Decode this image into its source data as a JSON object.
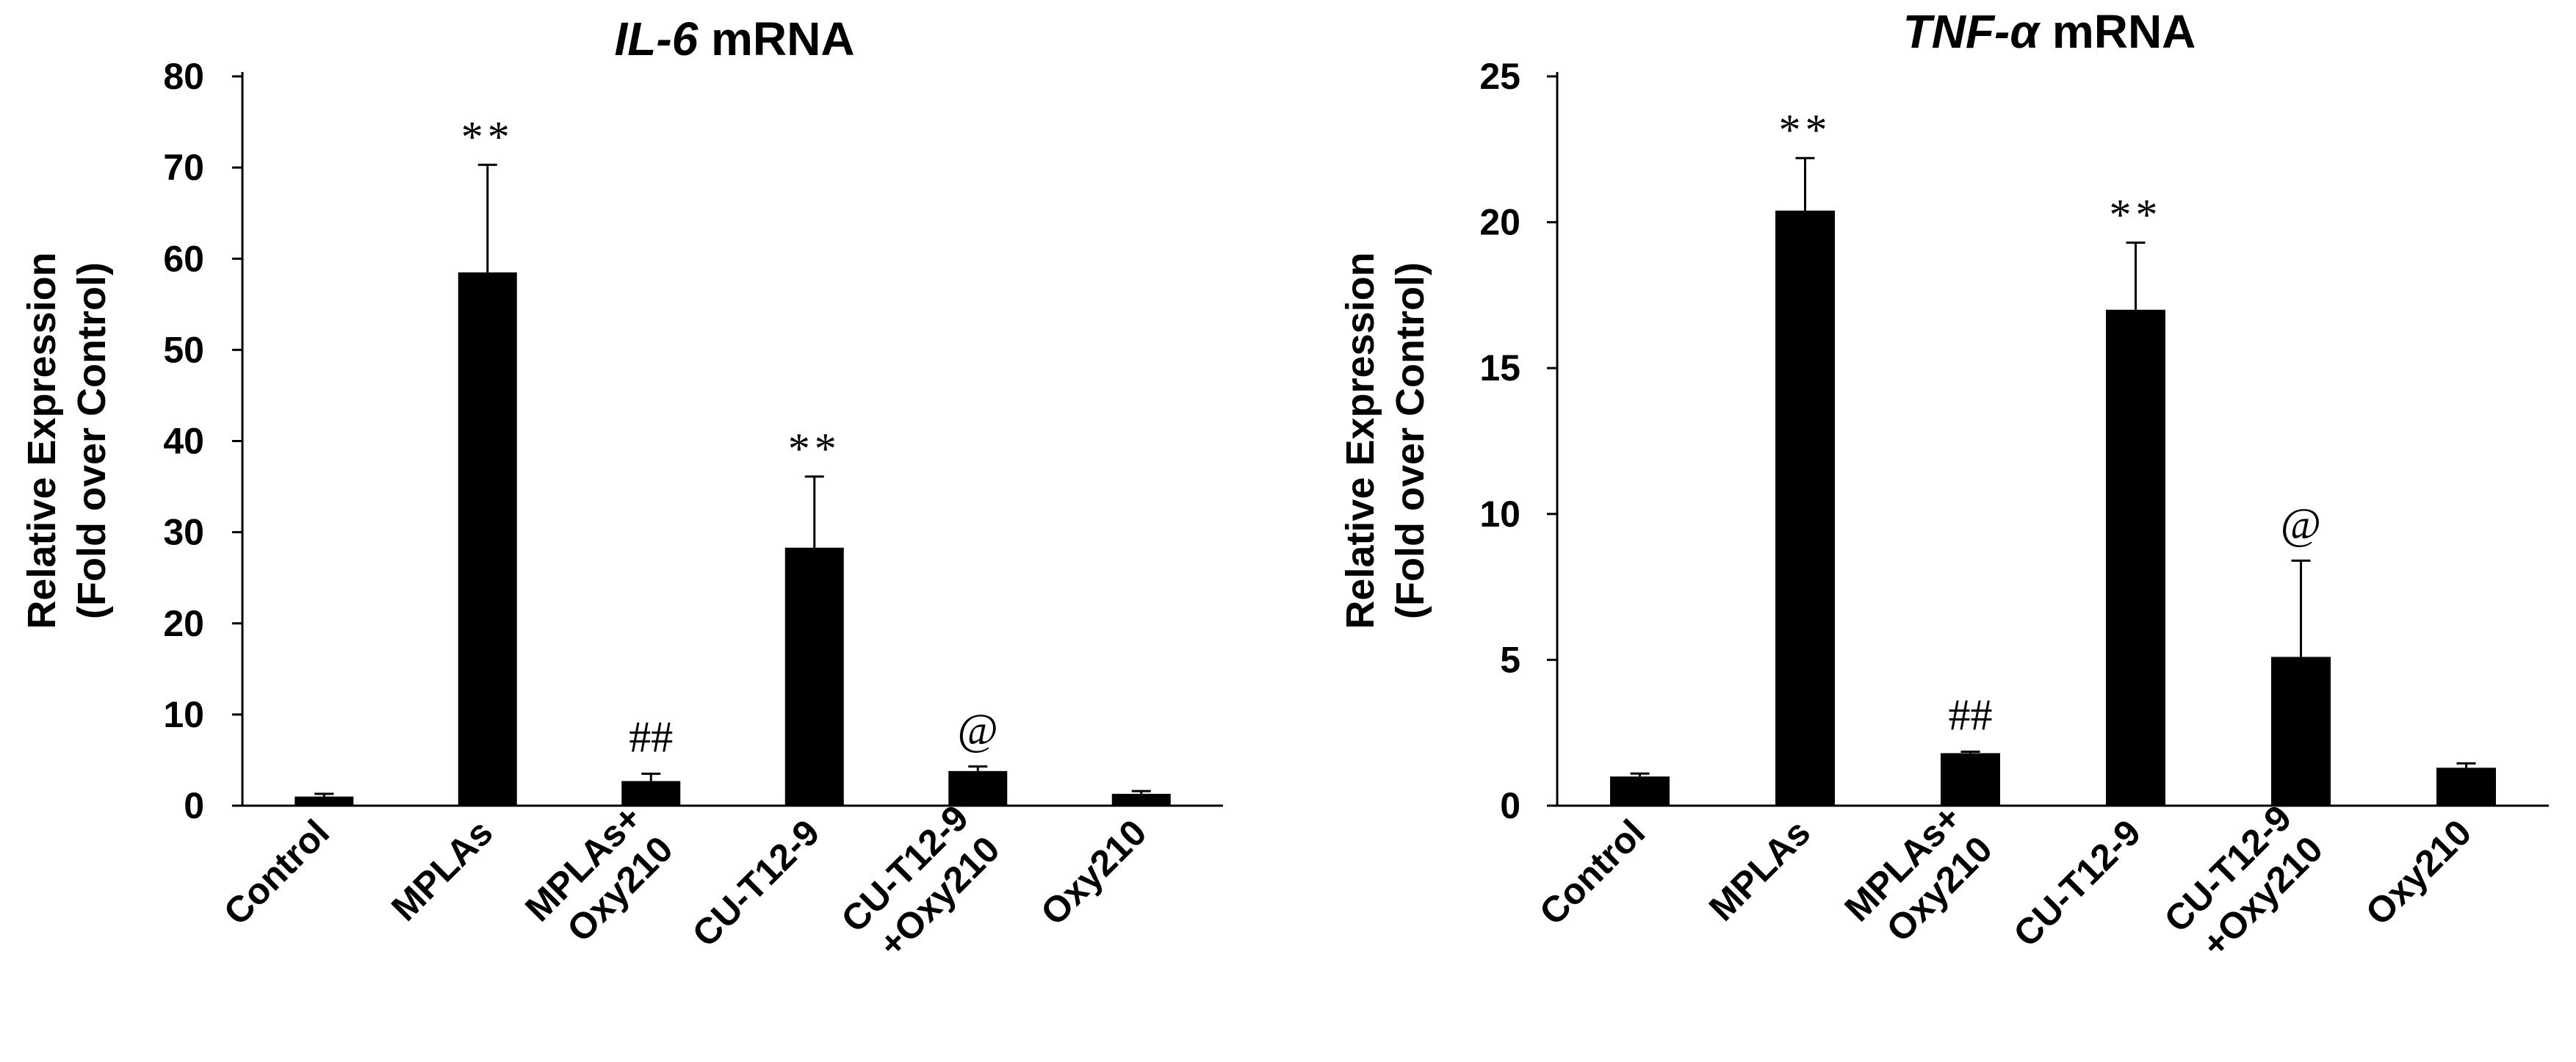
{
  "chart_data": [
    {
      "type": "bar",
      "title_italic": "IL-6",
      "title_rest": " mRNA",
      "ylabel_lines": [
        "Relative Expression",
        "(Fold over Control)"
      ],
      "xlabel": "",
      "ylim": [
        0,
        80
      ],
      "yticks": [
        0,
        10,
        20,
        30,
        40,
        50,
        60,
        70,
        80
      ],
      "categories": [
        [
          "Control"
        ],
        [
          "MPLAs"
        ],
        [
          "MPLAs+",
          "Oxy210"
        ],
        [
          "CU-T12-9"
        ],
        [
          "CU-T12-9",
          "+Oxy210"
        ],
        [
          "Oxy210"
        ]
      ],
      "series": [
        {
          "values": [
            1.0,
            58.5,
            2.7,
            28.3,
            3.8,
            1.3
          ],
          "errors": [
            0.3,
            11.8,
            0.8,
            7.8,
            0.5,
            0.3
          ]
        }
      ],
      "annotations": [
        "",
        "**",
        "##",
        "**",
        "@",
        ""
      ],
      "grid": false,
      "legend": "none"
    },
    {
      "type": "bar",
      "title_italic": "TNF-α",
      "title_rest": " mRNA",
      "ylabel_lines": [
        "Relative Expression",
        "(Fold over Control)"
      ],
      "xlabel": "",
      "ylim": [
        0,
        25
      ],
      "yticks": [
        0,
        5,
        10,
        15,
        20,
        25
      ],
      "categories": [
        [
          "Control"
        ],
        [
          "MPLAs"
        ],
        [
          "MPLAs+",
          "Oxy210"
        ],
        [
          "CU-T12-9"
        ],
        [
          "CU-T12-9",
          "+Oxy210"
        ],
        [
          "Oxy210"
        ]
      ],
      "series": [
        {
          "values": [
            1.0,
            20.4,
            1.8,
            17.0,
            5.1,
            1.3
          ],
          "errors": [
            0.1,
            1.8,
            0.05,
            2.3,
            3.3,
            0.15
          ]
        }
      ],
      "annotations": [
        "",
        "**",
        "##",
        "**",
        "@",
        ""
      ],
      "grid": false,
      "legend": "none"
    }
  ]
}
